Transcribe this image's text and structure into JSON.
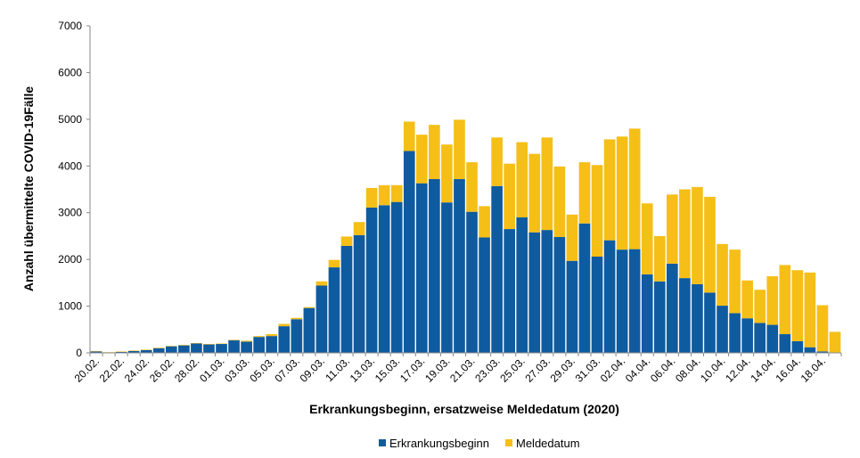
{
  "chart_data": {
    "type": "bar",
    "stacked": true,
    "ylabel": "Anzahl übermittelte COVID-19Fälle",
    "xlabel": "Erkrankungsbeginn, ersatzweise Meldedatum (2020)",
    "ylim": [
      0,
      7000
    ],
    "yticks": [
      0,
      1000,
      2000,
      3000,
      4000,
      5000,
      6000,
      7000
    ],
    "grid": false,
    "legend_position": "bottom",
    "x_tick_labels": [
      "20.02.",
      "22.02.",
      "24.02.",
      "26.02.",
      "28.02.",
      "01.03.",
      "03.03.",
      "05.03.",
      "07.03.",
      "09.03.",
      "11.03.",
      "13.03.",
      "15.03.",
      "17.03.",
      "19.03.",
      "21.03.",
      "23.03.",
      "25.03.",
      "27.03.",
      "29.03.",
      "31.03.",
      "02.04.",
      "04.04.",
      "06.04.",
      "08.04.",
      "10.04.",
      "12.04.",
      "14.04.",
      "16.04.",
      "18.04."
    ],
    "categories": [
      "20.02.",
      "21.02.",
      "22.02.",
      "23.02.",
      "24.02.",
      "25.02.",
      "26.02.",
      "27.02.",
      "28.02.",
      "29.02.",
      "01.03.",
      "02.03.",
      "03.03.",
      "04.03.",
      "05.03.",
      "06.03.",
      "07.03.",
      "08.03.",
      "09.03.",
      "10.03.",
      "11.03.",
      "12.03.",
      "13.03.",
      "14.03.",
      "15.03.",
      "16.03.",
      "17.03.",
      "18.03.",
      "19.03.",
      "20.03.",
      "21.03.",
      "22.03.",
      "23.03.",
      "24.03.",
      "25.03.",
      "26.03.",
      "27.03.",
      "28.03.",
      "29.03.",
      "30.03.",
      "31.03.",
      "01.04.",
      "02.04.",
      "03.04.",
      "04.04.",
      "05.04.",
      "06.04.",
      "07.04.",
      "08.04.",
      "09.04.",
      "10.04.",
      "11.04.",
      "12.04.",
      "13.04.",
      "14.04.",
      "15.04.",
      "16.04.",
      "17.04.",
      "18.04.",
      "19.04."
    ],
    "series": [
      {
        "name": "Erkrankungsbeginn",
        "color": "#0F5BA0",
        "values": [
          30,
          10,
          20,
          40,
          60,
          100,
          140,
          160,
          200,
          180,
          190,
          270,
          240,
          340,
          360,
          570,
          720,
          960,
          1440,
          1830,
          2290,
          2520,
          3110,
          3160,
          3230,
          4320,
          3630,
          3720,
          3220,
          3720,
          3020,
          2470,
          3570,
          2650,
          2900,
          2580,
          2630,
          2480,
          1970,
          2770,
          2060,
          2410,
          2210,
          2220,
          1680,
          1530,
          1910,
          1600,
          1470,
          1290,
          1010,
          850,
          740,
          640,
          600,
          400,
          250,
          120,
          30,
          10
        ]
      },
      {
        "name": "Meldedatum",
        "color": "#F5BF18",
        "values": [
          10,
          5,
          10,
          10,
          10,
          10,
          10,
          10,
          10,
          10,
          10,
          10,
          20,
          20,
          40,
          50,
          30,
          20,
          90,
          160,
          200,
          280,
          420,
          430,
          360,
          630,
          1040,
          1160,
          1240,
          1270,
          1060,
          670,
          1040,
          1400,
          1610,
          1680,
          1980,
          1510,
          990,
          1310,
          1960,
          2160,
          2420,
          2580,
          1520,
          970,
          1480,
          1900,
          2080,
          2050,
          1320,
          1360,
          810,
          710,
          1040,
          1480,
          1520,
          1600,
          990,
          440
        ]
      }
    ]
  }
}
